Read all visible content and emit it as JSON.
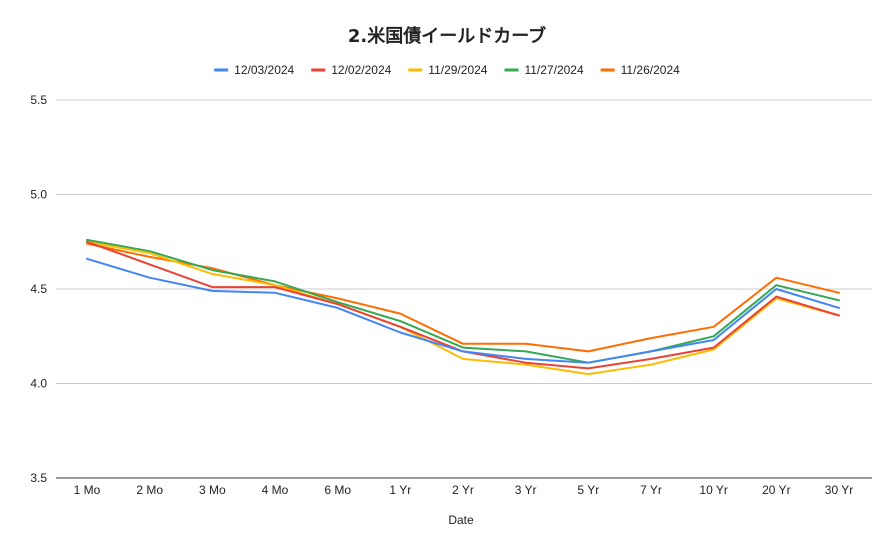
{
  "chart_data": {
    "type": "line",
    "title": "2.米国債イールドカーブ",
    "xlabel": "Date",
    "ylabel": "",
    "ylim": [
      3.5,
      5.5
    ],
    "yticks": [
      "3.5",
      "4.0",
      "4.5",
      "5.0",
      "5.5"
    ],
    "grid": true,
    "legend_position": "top",
    "categories": [
      "1 Mo",
      "2 Mo",
      "3 Mo",
      "4 Mo",
      "6 Mo",
      "1 Yr",
      "2 Yr",
      "3 Yr",
      "5 Yr",
      "7 Yr",
      "10 Yr",
      "20 Yr",
      "30 Yr"
    ],
    "series": [
      {
        "name": "12/03/2024",
        "color": "#4285f4",
        "values": [
          4.66,
          4.56,
          4.49,
          4.48,
          4.4,
          4.27,
          4.17,
          4.13,
          4.11,
          4.17,
          4.23,
          4.5,
          4.4
        ]
      },
      {
        "name": "12/02/2024",
        "color": "#ea4335",
        "values": [
          4.75,
          4.63,
          4.51,
          4.51,
          4.42,
          4.3,
          4.17,
          4.11,
          4.08,
          4.13,
          4.19,
          4.46,
          4.36
        ]
      },
      {
        "name": "11/29/2024",
        "color": "#fbbc04",
        "values": [
          4.75,
          4.69,
          4.58,
          4.52,
          4.42,
          4.3,
          4.13,
          4.1,
          4.05,
          4.1,
          4.18,
          4.45,
          4.36
        ]
      },
      {
        "name": "11/27/2024",
        "color": "#34a853",
        "values": [
          4.76,
          4.7,
          4.6,
          4.54,
          4.43,
          4.33,
          4.19,
          4.17,
          4.11,
          4.17,
          4.25,
          4.52,
          4.44
        ]
      },
      {
        "name": "11/26/2024",
        "color": "#ff6d01",
        "values": [
          4.74,
          4.67,
          4.61,
          4.52,
          4.45,
          4.37,
          4.21,
          4.21,
          4.17,
          4.24,
          4.3,
          4.56,
          4.48
        ]
      }
    ]
  }
}
